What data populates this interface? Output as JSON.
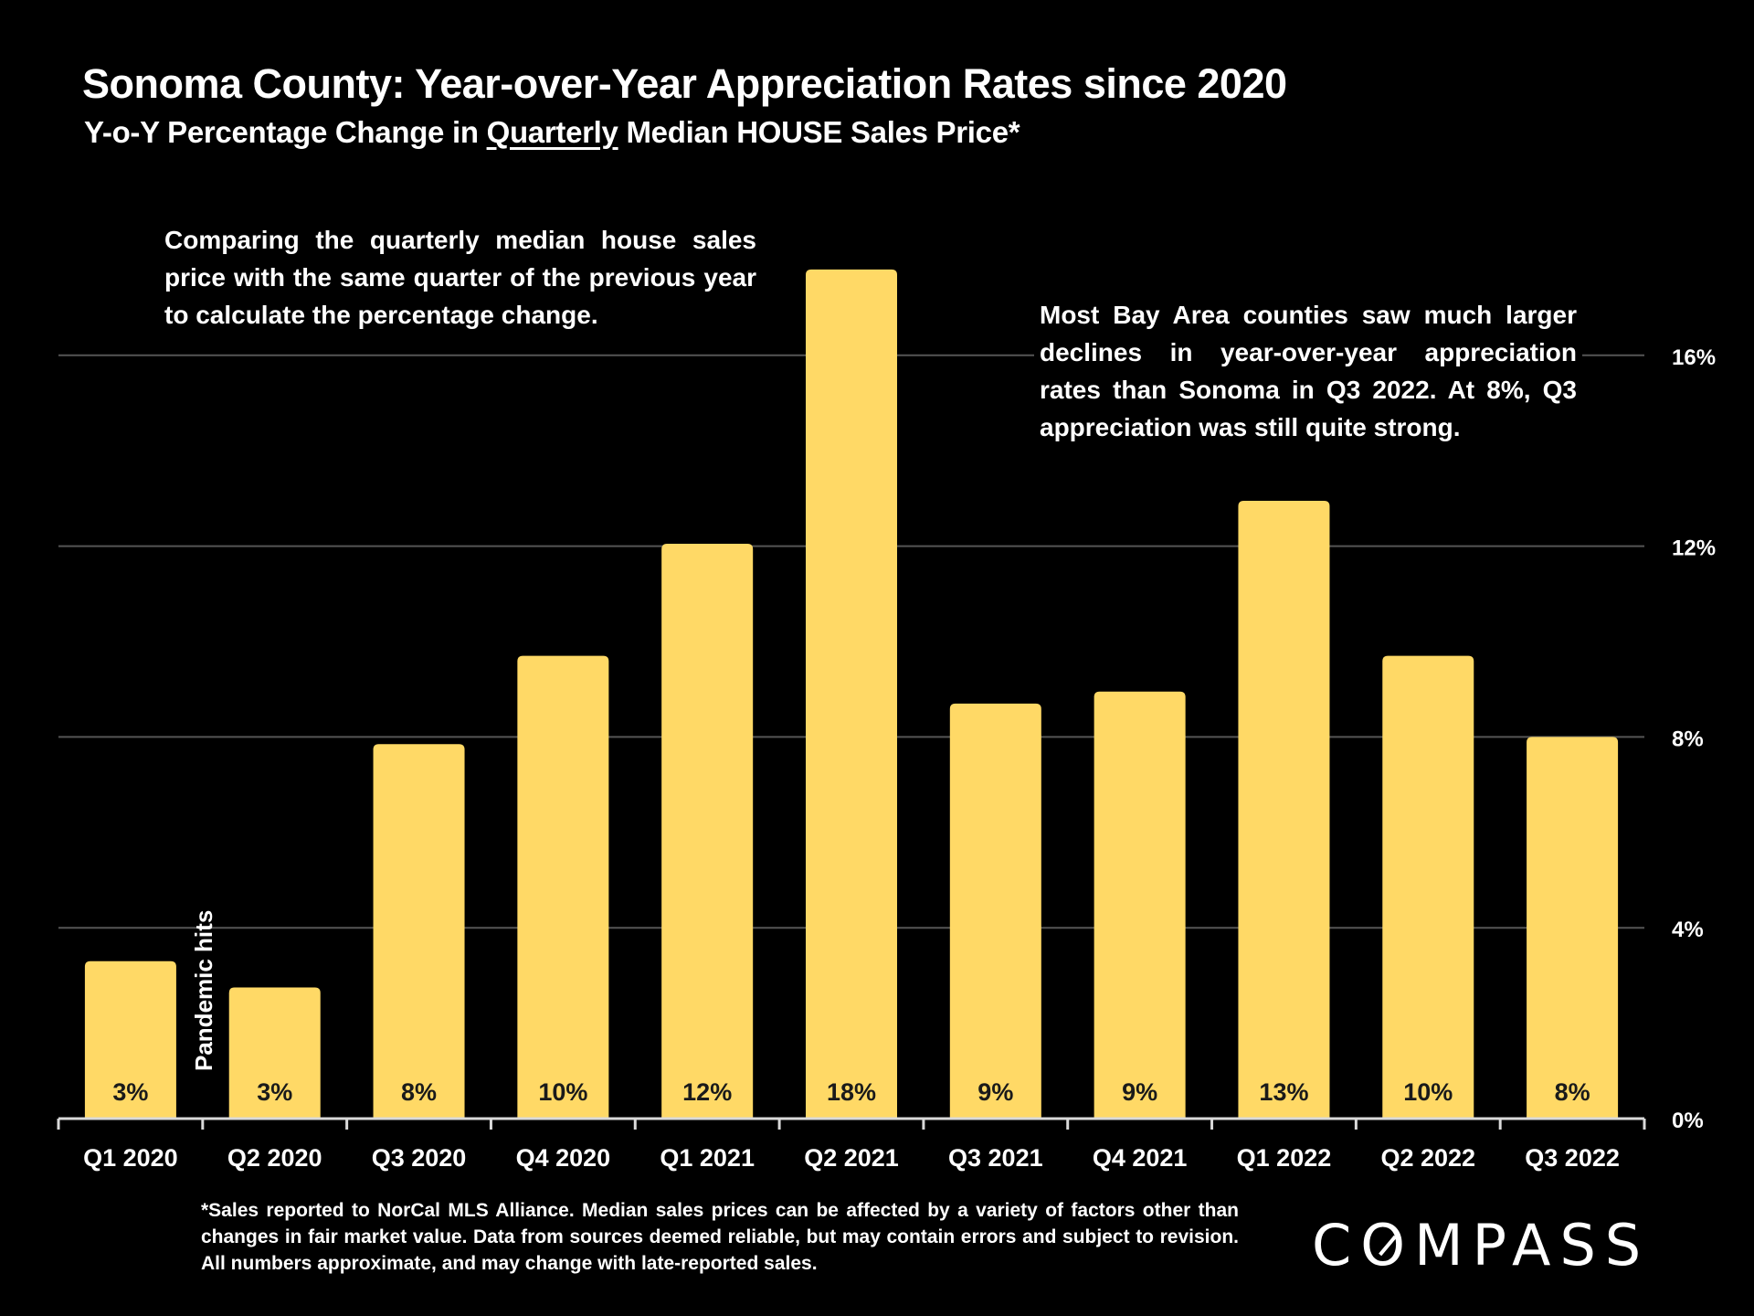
{
  "header": {
    "title": "Sonoma County: Year-over-Year Appreciation Rates since 2020",
    "subtitle_prefix": "Y-o-Y Percentage Change in ",
    "subtitle_underlined": "Quarterly",
    "subtitle_suffix": " Median HOUSE Sales Price*"
  },
  "annotations": {
    "left_note": "Comparing the quarterly median house sales price with the same quarter of the previous year to calculate the percentage change.",
    "right_note": "Most Bay Area counties saw much larger declines in year-over-year appreciation rates than Sonoma in Q3 2022. At 8%, Q3 appreciation was still quite strong.",
    "pandemic_label": "Pandemic hits"
  },
  "footnote": "*Sales reported to NorCal MLS Alliance. Median sales prices can be affected by a variety of factors other than changes in fair market value. Data from sources deemed reliable, but may contain errors and subject to revision. All numbers approximate, and may change with late-reported sales.",
  "brand": {
    "logo_text_pre": "C",
    "logo_text_o": "O",
    "logo_text_post": "MPASS"
  },
  "colors": {
    "background": "#000000",
    "bar": "#FFD966",
    "gridline": "#555555",
    "text": "#FFFFFF",
    "bar_label": "#1a1a1a"
  },
  "chart_data": {
    "type": "bar",
    "title": "Sonoma County: Year-over-Year Appreciation Rates since 2020",
    "subtitle": "Y-o-Y Percentage Change in Quarterly Median HOUSE Sales Price*",
    "xlabel": "",
    "ylabel": "",
    "categories": [
      "Q1 2020",
      "Q2 2020",
      "Q3 2020",
      "Q4 2020",
      "Q1 2021",
      "Q2 2021",
      "Q3 2021",
      "Q4 2021",
      "Q1 2022",
      "Q2 2022",
      "Q3 2022"
    ],
    "values": [
      3.3,
      2.75,
      7.85,
      9.7,
      12.05,
      17.8,
      8.7,
      8.95,
      12.95,
      9.7,
      8.0
    ],
    "data_labels": [
      "3%",
      "3%",
      "8%",
      "10%",
      "12%",
      "18%",
      "9%",
      "9%",
      "13%",
      "10%",
      "8%"
    ],
    "yticks": [
      0,
      4,
      8,
      12,
      16
    ],
    "ytick_labels": [
      "0%",
      "4%",
      "8%",
      "12%",
      "16%"
    ],
    "ylim": [
      0,
      18
    ],
    "y_axis_side": "right",
    "grid": true,
    "legend": "none"
  }
}
